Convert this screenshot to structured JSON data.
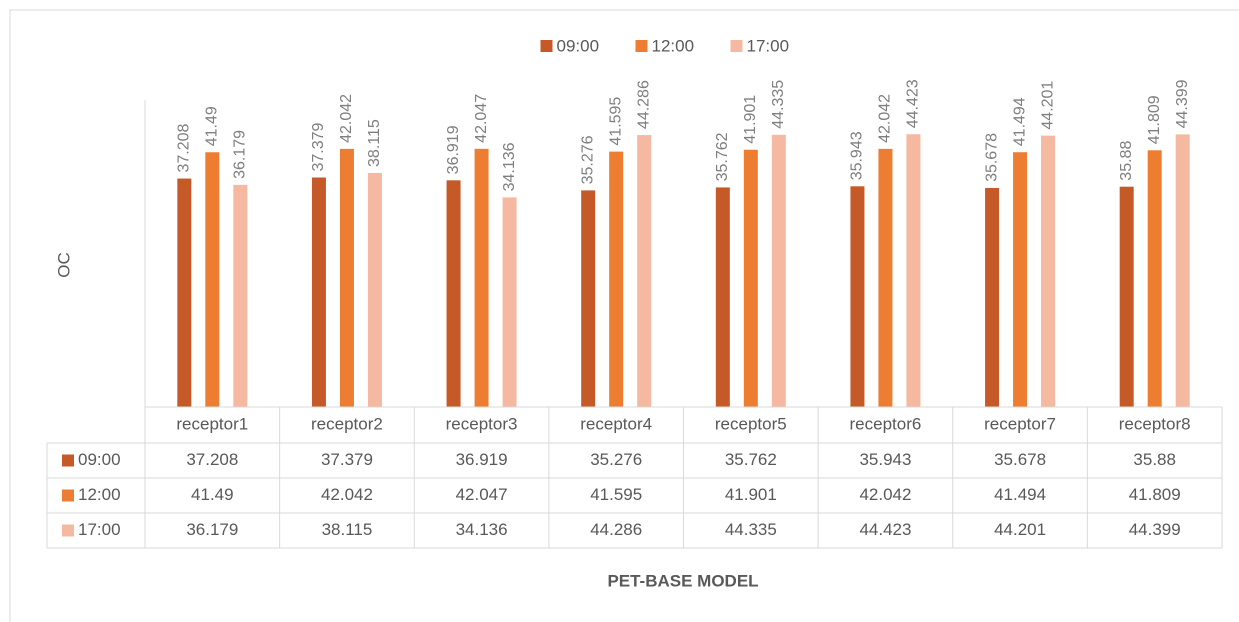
{
  "chart_data": {
    "type": "bar",
    "x_label": "PET-BASE MODEL",
    "y_label": "OC",
    "categories": [
      "receptor1",
      "receptor2",
      "receptor3",
      "receptor4",
      "receptor5",
      "receptor6",
      "receptor7",
      "receptor8"
    ],
    "series": [
      {
        "name": "09:00",
        "color": "#c55a28",
        "values": [
          37.208,
          37.379,
          36.919,
          35.276,
          35.762,
          35.943,
          35.678,
          35.88
        ]
      },
      {
        "name": "12:00",
        "color": "#ed7d31",
        "values": [
          41.49,
          42.042,
          42.047,
          41.595,
          41.901,
          42.042,
          41.494,
          41.809
        ]
      },
      {
        "name": "17:00",
        "color": "#f4b9a0",
        "values": [
          36.179,
          38.115,
          34.136,
          44.286,
          44.335,
          44.423,
          44.201,
          44.399
        ]
      }
    ],
    "ylim": [
      0,
      50
    ],
    "legend": "top",
    "data_table": true
  }
}
